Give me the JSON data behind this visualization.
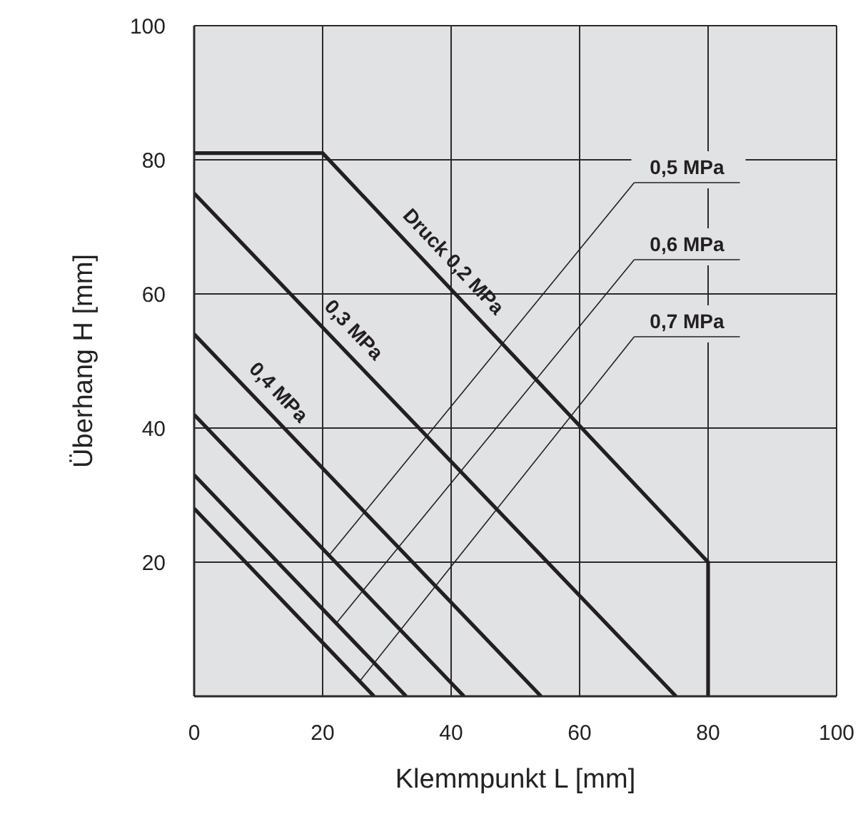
{
  "chart_data": {
    "type": "line",
    "xlabel": "Klemmpunkt L [mm]",
    "ylabel": "Überhang H [mm]",
    "series": [
      {
        "name": "Druck 0,2 MPa",
        "color": "#231f20",
        "x": [
          0,
          20,
          80,
          80
        ],
        "values": [
          81,
          81,
          20,
          0
        ]
      },
      {
        "name": "0,3 MPa",
        "color": "#231f20",
        "x": [
          0,
          75
        ],
        "values": [
          75,
          0
        ]
      },
      {
        "name": "0,4 MPa",
        "color": "#231f20",
        "x": [
          0,
          54
        ],
        "values": [
          54,
          0
        ]
      },
      {
        "name": "0,5 MPa",
        "color": "#231f20",
        "x": [
          0,
          42
        ],
        "values": [
          42,
          0
        ]
      },
      {
        "name": "0,6 MPa",
        "color": "#231f20",
        "x": [
          0,
          33
        ],
        "values": [
          33,
          0
        ]
      },
      {
        "name": "0,7 MPa",
        "color": "#231f20",
        "x": [
          0,
          28
        ],
        "values": [
          28,
          0
        ]
      }
    ],
    "xlim": [
      0,
      100
    ],
    "xticks": [
      0,
      20,
      40,
      60,
      80,
      100
    ],
    "ylim": [
      0,
      100
    ],
    "yticks": [
      20,
      40,
      60,
      80,
      100
    ],
    "grid": true
  }
}
